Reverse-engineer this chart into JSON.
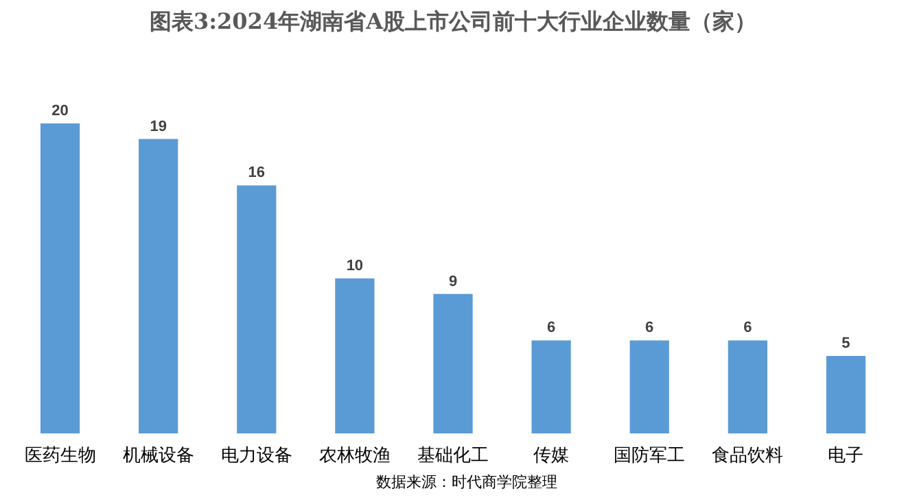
{
  "chart_data": {
    "type": "bar",
    "title": "图表3:2024年湖南省A股上市公司前十大行业企业数量（家）",
    "categories": [
      "医药生物",
      "机械设备",
      "电力设备",
      "农林牧渔",
      "基础化工",
      "传媒",
      "国防军工",
      "食品饮料",
      "电子"
    ],
    "values": [
      20,
      19,
      16,
      10,
      9,
      6,
      6,
      6,
      5
    ],
    "color": "#5b9bd5",
    "data_labels": true,
    "annotations": [
      "数据来源：时代商学院整理"
    ]
  }
}
